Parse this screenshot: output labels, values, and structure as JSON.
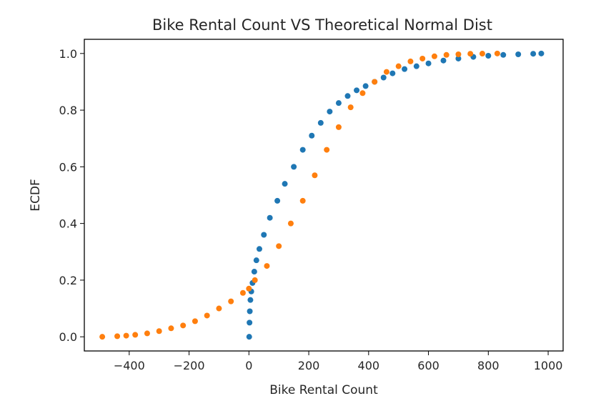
{
  "chart_data": {
    "type": "scatter",
    "title": "Bike Rental Count VS Theoretical Normal Dist",
    "xlabel": "Bike Rental Count",
    "ylabel": "ECDF",
    "xlim": [
      -550,
      1050
    ],
    "ylim": [
      -0.05,
      1.05
    ],
    "x_ticks": [
      -400,
      -200,
      0,
      200,
      400,
      600,
      800,
      1000
    ],
    "x_tick_labels": [
      "−400",
      "−200",
      "0",
      "200",
      "400",
      "600",
      "800",
      "1000"
    ],
    "y_ticks": [
      0.0,
      0.2,
      0.4,
      0.6,
      0.8,
      1.0
    ],
    "y_tick_labels": [
      "0.0",
      "0.2",
      "0.4",
      "0.6",
      "0.8",
      "1.0"
    ],
    "grid": false,
    "series": [
      {
        "color": "#1f77b4",
        "x": [
          1,
          2,
          3,
          5,
          8,
          12,
          18,
          25,
          35,
          50,
          70,
          95,
          120,
          150,
          180,
          210,
          240,
          270,
          300,
          330,
          360,
          390,
          420,
          450,
          480,
          520,
          560,
          600,
          650,
          700,
          750,
          800,
          850,
          900,
          950,
          977
        ],
        "y": [
          0.0,
          0.05,
          0.09,
          0.13,
          0.16,
          0.19,
          0.23,
          0.27,
          0.31,
          0.36,
          0.42,
          0.48,
          0.54,
          0.6,
          0.66,
          0.71,
          0.755,
          0.795,
          0.825,
          0.85,
          0.87,
          0.885,
          0.9,
          0.915,
          0.93,
          0.945,
          0.955,
          0.965,
          0.975,
          0.982,
          0.988,
          0.992,
          0.995,
          0.997,
          0.999,
          1.0
        ]
      },
      {
        "color": "#ff7f0e",
        "x": [
          -490,
          -440,
          -410,
          -380,
          -340,
          -300,
          -260,
          -220,
          -180,
          -140,
          -100,
          -60,
          -20,
          0,
          20,
          60,
          100,
          140,
          180,
          220,
          260,
          300,
          340,
          380,
          420,
          460,
          500,
          540,
          580,
          620,
          660,
          700,
          740,
          780,
          830
        ],
        "y": [
          0.0,
          0.002,
          0.004,
          0.007,
          0.012,
          0.02,
          0.03,
          0.04,
          0.055,
          0.075,
          0.1,
          0.125,
          0.155,
          0.17,
          0.2,
          0.25,
          0.32,
          0.4,
          0.48,
          0.57,
          0.66,
          0.74,
          0.81,
          0.86,
          0.9,
          0.935,
          0.955,
          0.972,
          0.982,
          0.99,
          0.995,
          0.997,
          0.999,
          0.9995,
          1.0
        ]
      }
    ]
  }
}
